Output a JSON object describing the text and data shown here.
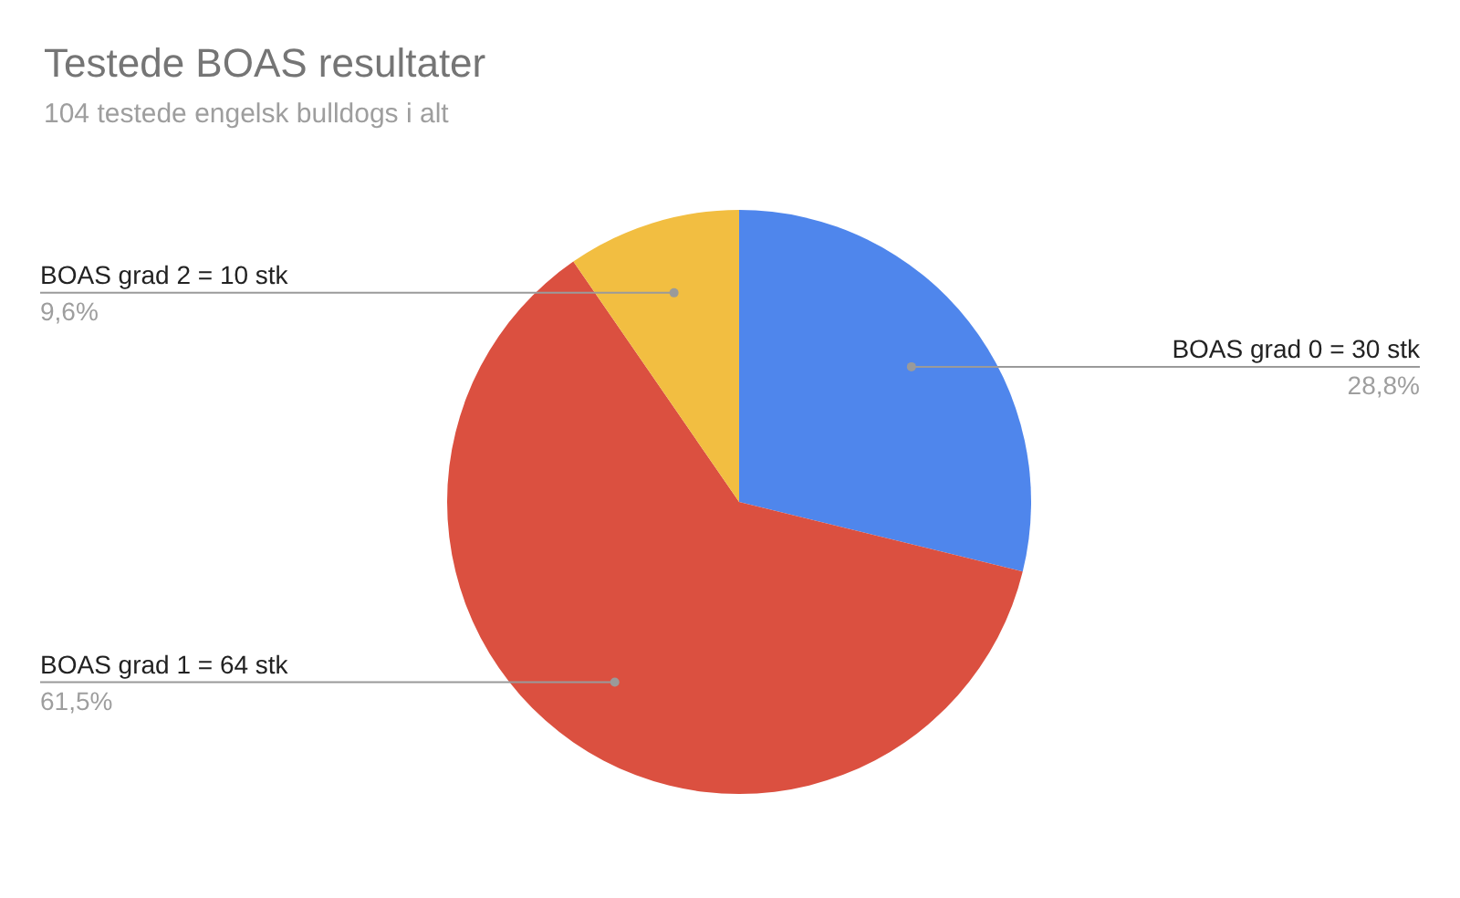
{
  "chart_data": {
    "type": "pie",
    "title": "Testede BOAS resultater",
    "subtitle": "104 testede engelsk bulldogs i alt",
    "categories": [
      "BOAS grad 0 = 30 stk",
      "BOAS grad 1 = 64 stk",
      "BOAS grad 2 = 10 stk"
    ],
    "values": [
      28.8,
      61.5,
      9.6
    ],
    "colors": [
      "#4f86ec",
      "#db5040",
      "#f2be41"
    ],
    "value_labels": [
      "28,8%",
      "61,5%",
      "9,6%"
    ]
  }
}
